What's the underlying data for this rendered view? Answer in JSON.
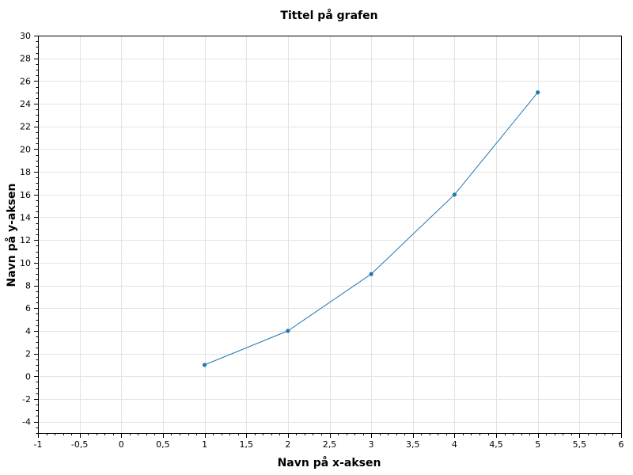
{
  "chart_data": {
    "type": "line",
    "title": "Tittel på grafen",
    "xlabel": "Navn på x-aksen",
    "ylabel": "Navn på y-aksen",
    "xlim": [
      -1,
      6
    ],
    "ylim": [
      -5,
      30
    ],
    "x_ticks": [
      -1,
      -0.5,
      0,
      0.5,
      1,
      1.5,
      2,
      2.5,
      3,
      3.5,
      4,
      4.5,
      5,
      5.5,
      6
    ],
    "x_tick_labels": [
      "-1",
      "-0,5",
      "0",
      "0,5",
      "1",
      "1,5",
      "2",
      "2,5",
      "3",
      "3,5",
      "4",
      "4,5",
      "5",
      "5,5",
      "6"
    ],
    "y_ticks": [
      -4,
      -2,
      0,
      2,
      4,
      6,
      8,
      10,
      12,
      14,
      16,
      18,
      20,
      22,
      24,
      26,
      28,
      30
    ],
    "y_tick_labels": [
      "-4",
      "-2",
      "0",
      "2",
      "4",
      "6",
      "8",
      "10",
      "12",
      "14",
      "16",
      "18",
      "20",
      "22",
      "24",
      "26",
      "28",
      "30"
    ],
    "grid": true,
    "legend": "none",
    "series": [
      {
        "color": "#1f77b4",
        "x": [
          1,
          2,
          3,
          4,
          5
        ],
        "y": [
          1,
          4,
          9,
          16,
          25
        ]
      }
    ]
  }
}
